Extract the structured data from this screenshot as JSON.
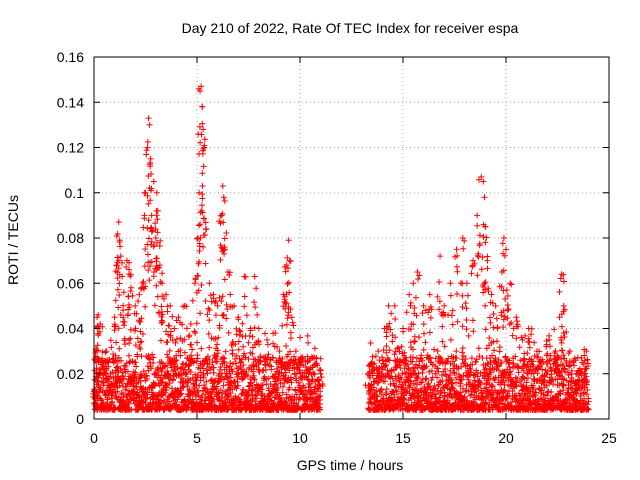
{
  "chart_data": {
    "type": "scatter",
    "title": "Day 210 of 2022, Rate Of TEC Index for receiver espa",
    "xlabel": "GPS time / hours",
    "ylabel": "ROTI / TECUs",
    "xlim": [
      0,
      25
    ],
    "ylim": [
      0,
      0.16
    ],
    "x_ticks": [
      0,
      5,
      10,
      15,
      20,
      25
    ],
    "y_ticks": [
      0,
      0.02,
      0.04,
      0.06,
      0.08,
      0.1,
      0.12,
      0.14,
      0.16
    ],
    "x_tick_labels": [
      "0",
      "5",
      "10",
      "15",
      "20",
      "25"
    ],
    "y_tick_labels": [
      "0",
      "0.02",
      "0.04",
      "0.06",
      "0.08",
      "0.1",
      "0.12",
      "0.14",
      "0.16"
    ],
    "grid": true,
    "marker": "+",
    "color": "#ff0000",
    "data_gap_hours": [
      11.0,
      13.3
    ],
    "series": [
      {
        "name": "ROTI",
        "points": [
          [
            0.05,
            0.013
          ],
          [
            0.1,
            0.03
          ],
          [
            0.15,
            0.045
          ],
          [
            0.2,
            0.046
          ],
          [
            0.3,
            0.042
          ],
          [
            0.4,
            0.025
          ],
          [
            0.6,
            0.03
          ],
          [
            0.8,
            0.02
          ],
          [
            1.0,
            0.045
          ],
          [
            1.1,
            0.068
          ],
          [
            1.2,
            0.087
          ],
          [
            1.25,
            0.079
          ],
          [
            1.3,
            0.072
          ],
          [
            1.45,
            0.056
          ],
          [
            1.6,
            0.07
          ],
          [
            1.7,
            0.066
          ],
          [
            1.8,
            0.058
          ],
          [
            2.0,
            0.05
          ],
          [
            2.2,
            0.055
          ],
          [
            2.3,
            0.058
          ],
          [
            2.45,
            0.09
          ],
          [
            2.5,
            0.1
          ],
          [
            2.6,
            0.12
          ],
          [
            2.65,
            0.133
          ],
          [
            2.7,
            0.13
          ],
          [
            2.75,
            0.115
          ],
          [
            2.8,
            0.09
          ],
          [
            2.9,
            0.105
          ],
          [
            3.0,
            0.08
          ],
          [
            3.05,
            0.1
          ],
          [
            3.1,
            0.092
          ],
          [
            3.2,
            0.068
          ],
          [
            3.3,
            0.06
          ],
          [
            3.5,
            0.055
          ],
          [
            3.7,
            0.05
          ],
          [
            3.9,
            0.04
          ],
          [
            4.1,
            0.045
          ],
          [
            4.4,
            0.05
          ],
          [
            4.7,
            0.042
          ],
          [
            4.9,
            0.06
          ],
          [
            5.05,
            0.08
          ],
          [
            5.1,
            0.1
          ],
          [
            5.15,
            0.145
          ],
          [
            5.2,
            0.147
          ],
          [
            5.25,
            0.138
          ],
          [
            5.3,
            0.128
          ],
          [
            5.35,
            0.12
          ],
          [
            5.45,
            0.084
          ],
          [
            5.6,
            0.06
          ],
          [
            5.8,
            0.055
          ],
          [
            6.0,
            0.05
          ],
          [
            6.2,
            0.09
          ],
          [
            6.25,
            0.103
          ],
          [
            6.3,
            0.098
          ],
          [
            6.35,
            0.075
          ],
          [
            6.5,
            0.065
          ],
          [
            6.8,
            0.05
          ],
          [
            7.0,
            0.045
          ],
          [
            7.3,
            0.063
          ],
          [
            7.6,
            0.04
          ],
          [
            7.8,
            0.063
          ],
          [
            8.0,
            0.04
          ],
          [
            8.4,
            0.035
          ],
          [
            8.8,
            0.038
          ],
          [
            9.0,
            0.03
          ],
          [
            9.2,
            0.055
          ],
          [
            9.35,
            0.068
          ],
          [
            9.45,
            0.079
          ],
          [
            9.5,
            0.07
          ],
          [
            9.6,
            0.045
          ],
          [
            9.8,
            0.03
          ],
          [
            10.0,
            0.025
          ],
          [
            10.4,
            0.022
          ],
          [
            10.8,
            0.027
          ],
          [
            11.0,
            0.02
          ],
          [
            13.3,
            0.02
          ],
          [
            13.5,
            0.025
          ],
          [
            13.8,
            0.03
          ],
          [
            14.1,
            0.04
          ],
          [
            14.3,
            0.05
          ],
          [
            14.6,
            0.05
          ],
          [
            15.0,
            0.04
          ],
          [
            15.3,
            0.055
          ],
          [
            15.5,
            0.06
          ],
          [
            15.7,
            0.065
          ],
          [
            16.0,
            0.05
          ],
          [
            16.3,
            0.055
          ],
          [
            16.8,
            0.072
          ],
          [
            17.0,
            0.05
          ],
          [
            17.3,
            0.06
          ],
          [
            17.6,
            0.075
          ],
          [
            17.9,
            0.08
          ],
          [
            18.1,
            0.06
          ],
          [
            18.4,
            0.07
          ],
          [
            18.6,
            0.09
          ],
          [
            18.8,
            0.107
          ],
          [
            18.9,
            0.105
          ],
          [
            19.0,
            0.085
          ],
          [
            19.1,
            0.07
          ],
          [
            19.3,
            0.055
          ],
          [
            19.5,
            0.05
          ],
          [
            19.8,
            0.065
          ],
          [
            19.9,
            0.08
          ],
          [
            20.0,
            0.075
          ],
          [
            20.2,
            0.06
          ],
          [
            20.5,
            0.045
          ],
          [
            20.8,
            0.035
          ],
          [
            21.1,
            0.04
          ],
          [
            21.5,
            0.03
          ],
          [
            21.8,
            0.025
          ],
          [
            22.1,
            0.035
          ],
          [
            22.4,
            0.03
          ],
          [
            22.6,
            0.045
          ],
          [
            22.7,
            0.064
          ],
          [
            22.8,
            0.05
          ],
          [
            23.1,
            0.03
          ],
          [
            23.4,
            0.02
          ],
          [
            23.7,
            0.025
          ],
          [
            23.9,
            0.03
          ]
        ]
      }
    ]
  }
}
